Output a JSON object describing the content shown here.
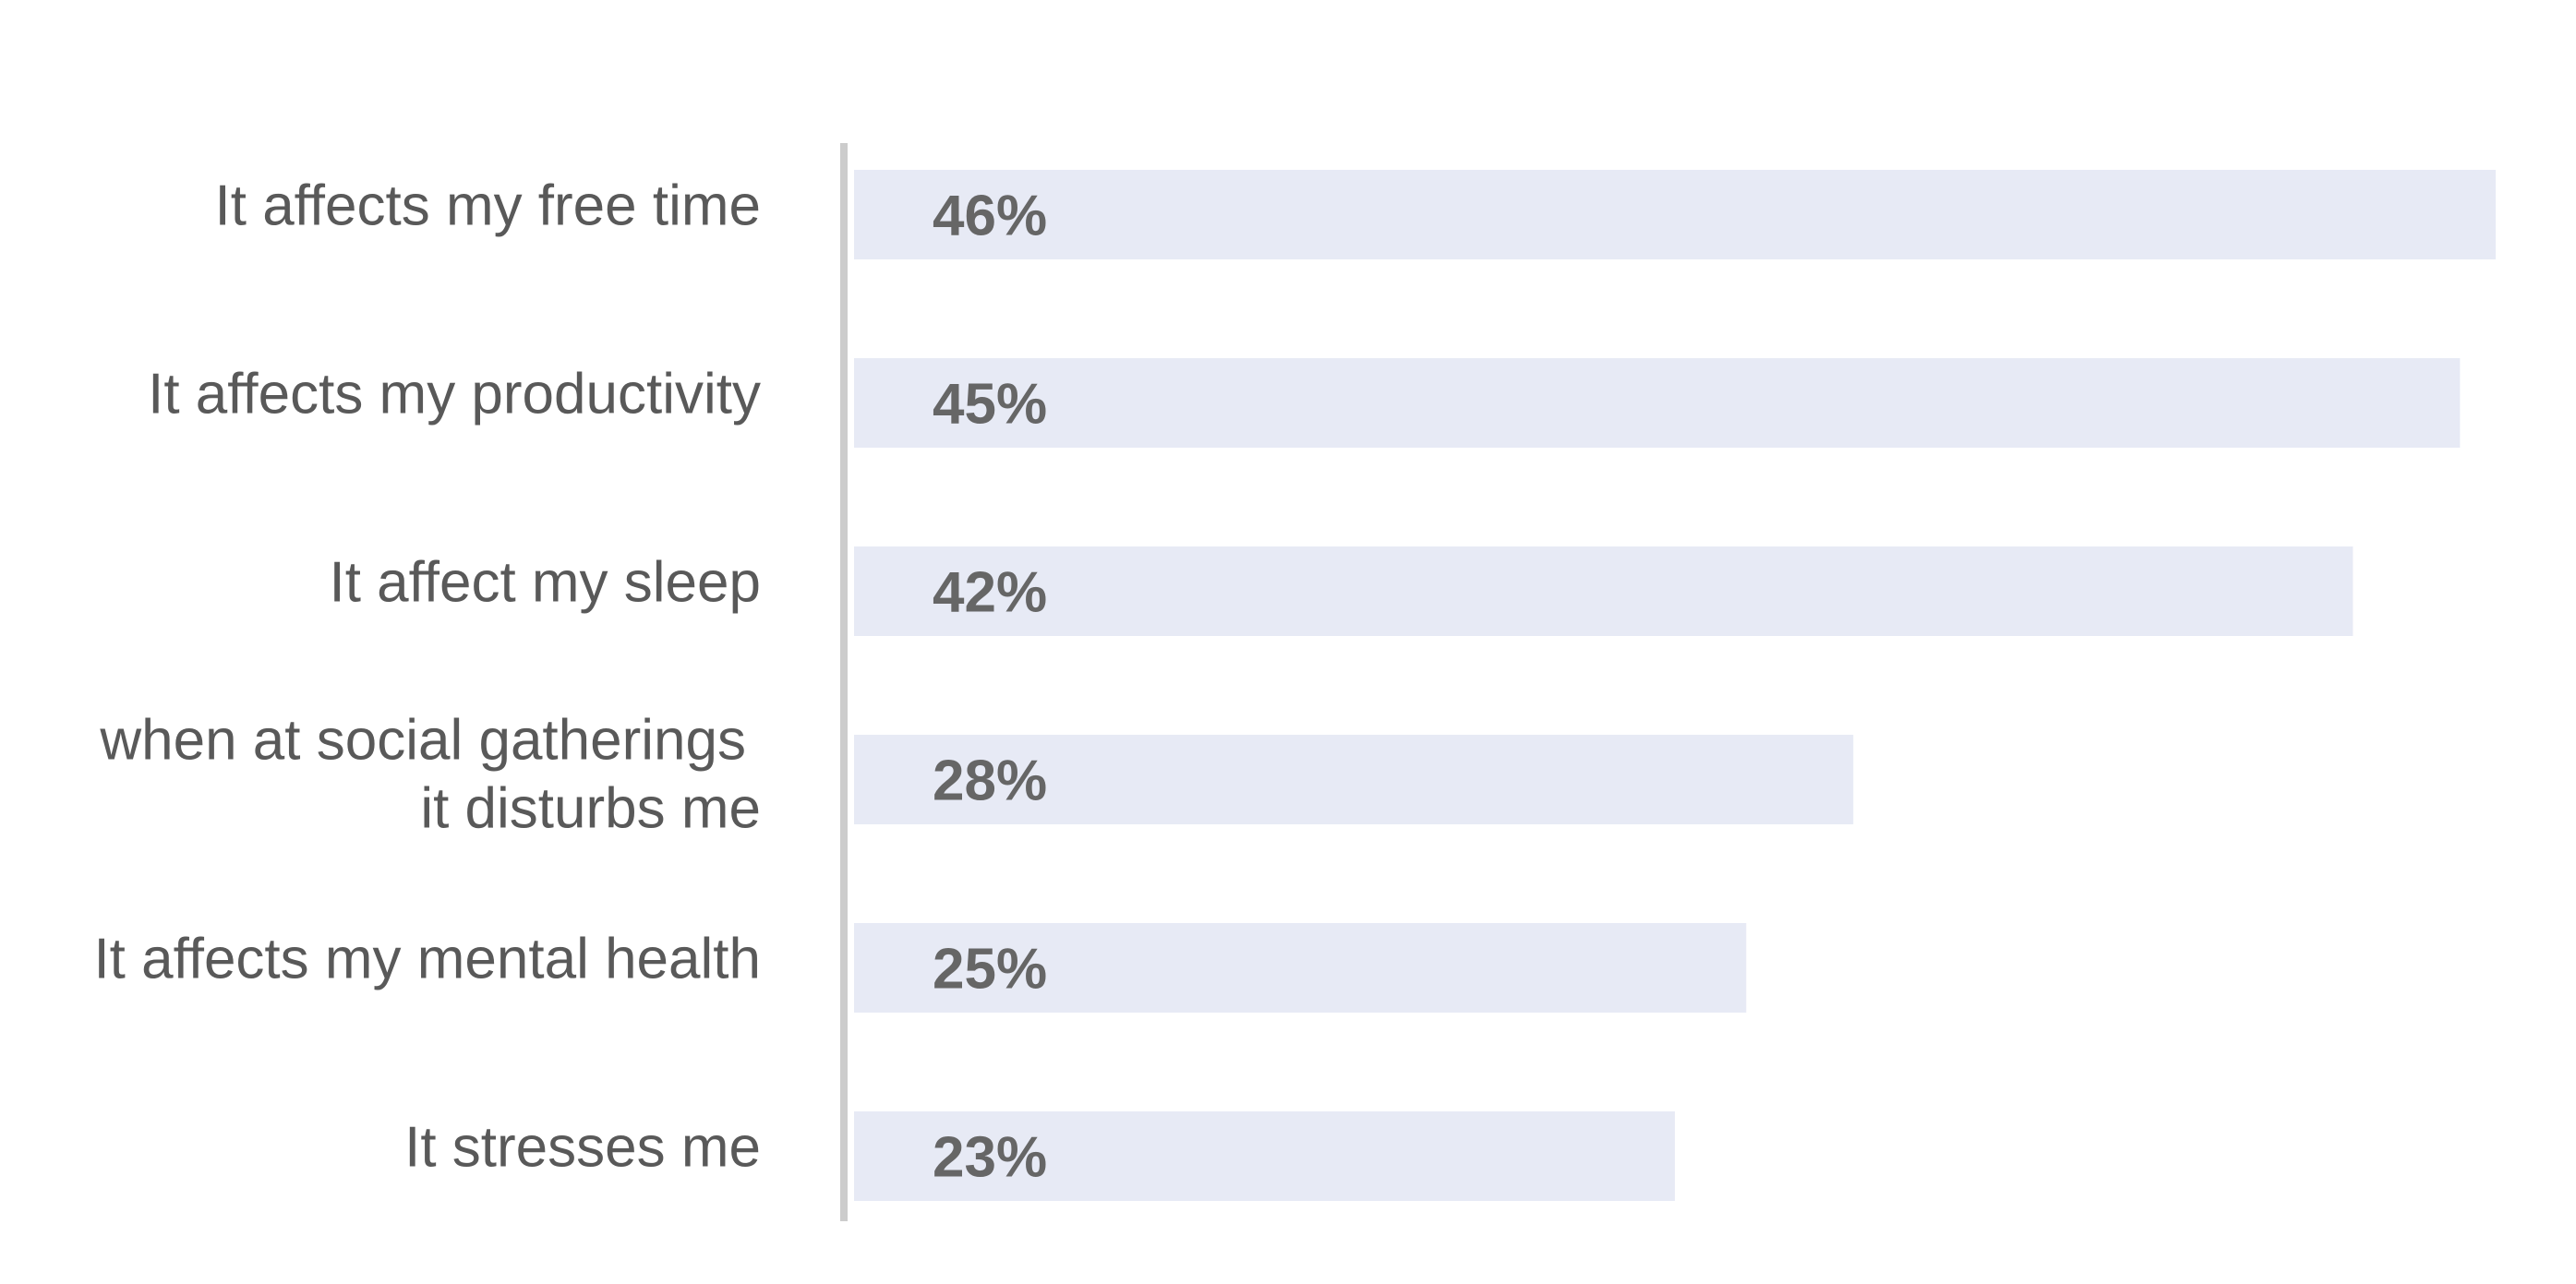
{
  "chart_data": {
    "type": "bar",
    "orientation": "horizontal",
    "categories": [
      [
        "It affects my free time"
      ],
      [
        "It affects my productivity"
      ],
      [
        "It affect my sleep"
      ],
      [
        "when at social gatherings",
        "it disturbs me"
      ],
      [
        "It affects my mental health"
      ],
      [
        "It stresses me"
      ]
    ],
    "values": [
      46,
      45,
      42,
      28,
      25,
      23
    ],
    "value_labels": [
      "46%",
      "45%",
      "42%",
      "28%",
      "25%",
      "23%"
    ],
    "unit": "%",
    "xlim": [
      0,
      46
    ],
    "grid": false,
    "legend": "none",
    "colors": {
      "bar": "#e7eaf5",
      "axis": "#cccccc",
      "category_text": "#595959",
      "value_text": "#666666"
    }
  }
}
